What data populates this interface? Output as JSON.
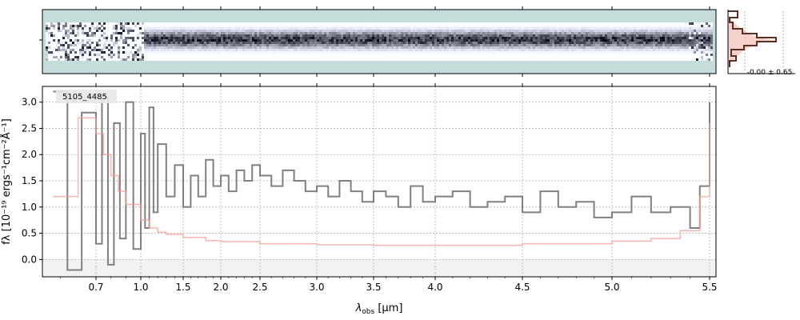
{
  "chart_data": {
    "type": "line",
    "object_label": "5105_4485",
    "xlabel": "λobs [μm]",
    "xlabel_parts": {
      "main": "λ",
      "sub": "obs",
      "unit": " [μm]"
    },
    "ylabel": "fλ [10⁻¹⁹ ergs⁻¹cm⁻²Å⁻¹]",
    "xlim": [
      0.55,
      5.52
    ],
    "ylim": [
      -0.33,
      3.3
    ],
    "x_scale": "nonlinear (prism resolution)",
    "x_ticks": [
      0.7,
      1.0,
      1.5,
      2.0,
      2.5,
      3.0,
      3.5,
      4.0,
      4.5,
      5.0,
      5.5
    ],
    "x_tick_labels": [
      "0.7",
      "1.0",
      "1.5",
      "2.0",
      "2.5",
      "3.0",
      "3.5",
      "4.0",
      "4.5",
      "5.0",
      "5.5"
    ],
    "y_ticks": [
      0.0,
      0.5,
      1.0,
      1.5,
      2.0,
      2.5,
      3.0
    ],
    "y_tick_labels": [
      "0.0",
      "0.5",
      "1.0",
      "1.5",
      "2.0",
      "2.5",
      "3.0"
    ],
    "grid": true,
    "series": [
      {
        "role": "flux",
        "color": "#808080",
        "x": [
          0.58,
          0.62,
          0.66,
          0.7,
          0.74,
          0.78,
          0.82,
          0.86,
          0.9,
          0.95,
          1.0,
          1.05,
          1.1,
          1.15,
          1.2,
          1.3,
          1.4,
          1.5,
          1.6,
          1.7,
          1.8,
          1.9,
          2.0,
          2.1,
          2.2,
          2.3,
          2.4,
          2.5,
          2.6,
          2.7,
          2.8,
          2.9,
          3.0,
          3.1,
          3.2,
          3.3,
          3.4,
          3.5,
          3.6,
          3.7,
          3.8,
          3.9,
          4.0,
          4.1,
          4.2,
          4.3,
          4.4,
          4.5,
          4.6,
          4.7,
          4.8,
          4.9,
          5.0,
          5.1,
          5.2,
          5.3,
          5.4,
          5.45,
          5.5
        ],
        "y": [
          3.2,
          -0.2,
          2.8,
          0.3,
          3.1,
          -0.1,
          2.6,
          0.4,
          3.0,
          0.2,
          2.4,
          0.6,
          2.9,
          0.9,
          2.2,
          1.2,
          1.8,
          1.0,
          1.6,
          1.2,
          1.9,
          1.4,
          1.6,
          1.3,
          1.7,
          1.5,
          1.8,
          1.6,
          1.4,
          1.7,
          1.5,
          1.3,
          1.4,
          1.2,
          1.5,
          1.3,
          1.1,
          1.3,
          1.2,
          1.0,
          1.4,
          1.1,
          1.2,
          1.3,
          1.0,
          1.1,
          1.2,
          0.9,
          1.3,
          1.0,
          1.1,
          0.8,
          0.9,
          1.2,
          0.9,
          1.0,
          0.6,
          1.4,
          3.0
        ]
      },
      {
        "role": "error",
        "color": "#f2a09a",
        "x": [
          0.58,
          0.65,
          0.7,
          0.75,
          0.8,
          0.85,
          0.9,
          1.0,
          1.1,
          1.2,
          1.3,
          1.5,
          1.8,
          2.0,
          2.5,
          3.0,
          3.5,
          4.0,
          4.5,
          5.0,
          5.2,
          5.35,
          5.45,
          5.5
        ],
        "y": [
          1.2,
          2.7,
          2.4,
          2.0,
          1.6,
          1.3,
          1.05,
          0.75,
          0.6,
          0.52,
          0.48,
          0.42,
          0.36,
          0.34,
          0.3,
          0.28,
          0.27,
          0.27,
          0.3,
          0.35,
          0.4,
          0.55,
          1.2,
          2.6
        ]
      }
    ]
  },
  "histogram": {
    "label": "-0.00 ± 0.65"
  },
  "colors": {
    "spectrum_2d_bg": "#c5dcda",
    "spectrum_2d_trace": "#1a2a44",
    "flux_line": "#808080",
    "error_line": "#f2a09a",
    "hist_line": "#5a3020",
    "hist_fill": "#f6c6bf",
    "grid": "#b0b0b0"
  }
}
